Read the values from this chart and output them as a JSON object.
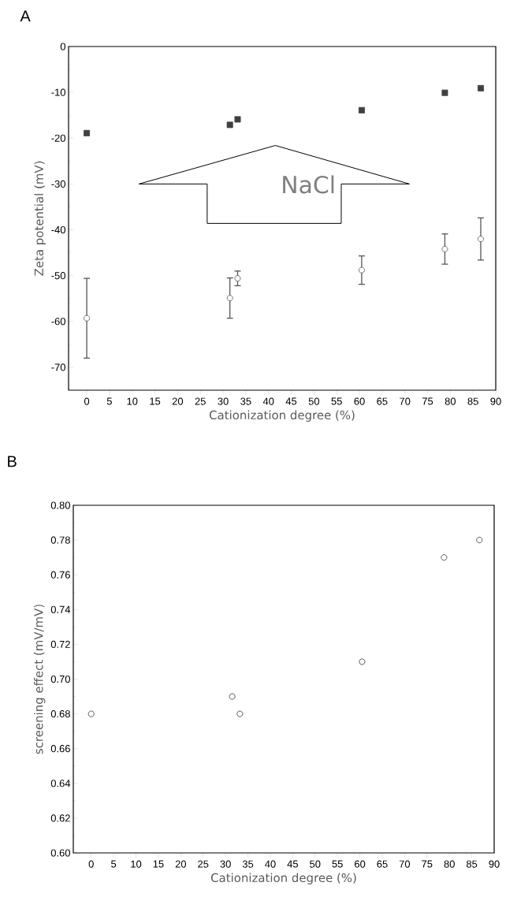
{
  "chart_data": [
    {
      "type": "scatter",
      "title": "A",
      "xlabel": "Cationization degree (%)",
      "ylabel": "Zeta potential (mV)",
      "x": [
        0,
        31.5,
        33.2,
        60.5,
        78.8,
        86.7
      ],
      "series": [
        {
          "color": "#404040",
          "marker": "square",
          "values": [
            -18.9,
            -17.1,
            -15.9,
            -13.9,
            -10.1,
            -9.1
          ]
        },
        {
          "color": "#555555",
          "marker": "circle",
          "values": [
            -59.3,
            -54.9,
            -50.6,
            -48.8,
            -44.2,
            -42.0
          ],
          "errors": [
            8.7,
            4.4,
            1.6,
            3.1,
            3.3,
            4.6
          ]
        }
      ],
      "annotations": [
        "NaCl"
      ],
      "xlim": [
        -4,
        90
      ],
      "xticks": [
        0,
        5,
        10,
        15,
        20,
        25,
        30,
        35,
        40,
        45,
        50,
        55,
        60,
        65,
        70,
        75,
        80,
        85,
        90
      ],
      "ylim": [
        -75,
        0
      ],
      "yticks": [
        -70,
        -60,
        -50,
        -40,
        -30,
        -20,
        -10,
        0
      ],
      "grid": false
    },
    {
      "type": "scatter",
      "title": "B",
      "xlabel": "Cationization degree (%)",
      "ylabel": "screening effect (mV/mV)",
      "x": [
        0,
        31.5,
        33.2,
        60.5,
        78.8,
        86.7
      ],
      "series": [
        {
          "color": "#333333",
          "marker": "circle",
          "values": [
            0.68,
            0.69,
            0.68,
            0.71,
            0.77,
            0.78
          ]
        }
      ],
      "xlim": [
        -4,
        90
      ],
      "xticks": [
        0,
        5,
        10,
        15,
        20,
        25,
        30,
        35,
        40,
        45,
        50,
        55,
        60,
        65,
        70,
        75,
        80,
        85,
        90
      ],
      "ylim": [
        0.6,
        0.8
      ],
      "yticks": [
        {
          "value": 0.6,
          "label": "0.60"
        },
        {
          "value": 0.62,
          "label": "0.62"
        },
        {
          "value": 0.64,
          "label": "0.64"
        },
        {
          "value": 0.66,
          "label": "0.66"
        },
        {
          "value": 0.68,
          "label": "0.68"
        },
        {
          "value": 0.7,
          "label": "0.70"
        },
        {
          "value": 0.72,
          "label": "0.72"
        },
        {
          "value": 0.74,
          "label": "0.74"
        },
        {
          "value": 0.76,
          "label": "0.76"
        },
        {
          "value": 0.78,
          "label": "0.78"
        },
        {
          "value": 0.8,
          "label": "0.80"
        }
      ],
      "grid": false
    }
  ]
}
